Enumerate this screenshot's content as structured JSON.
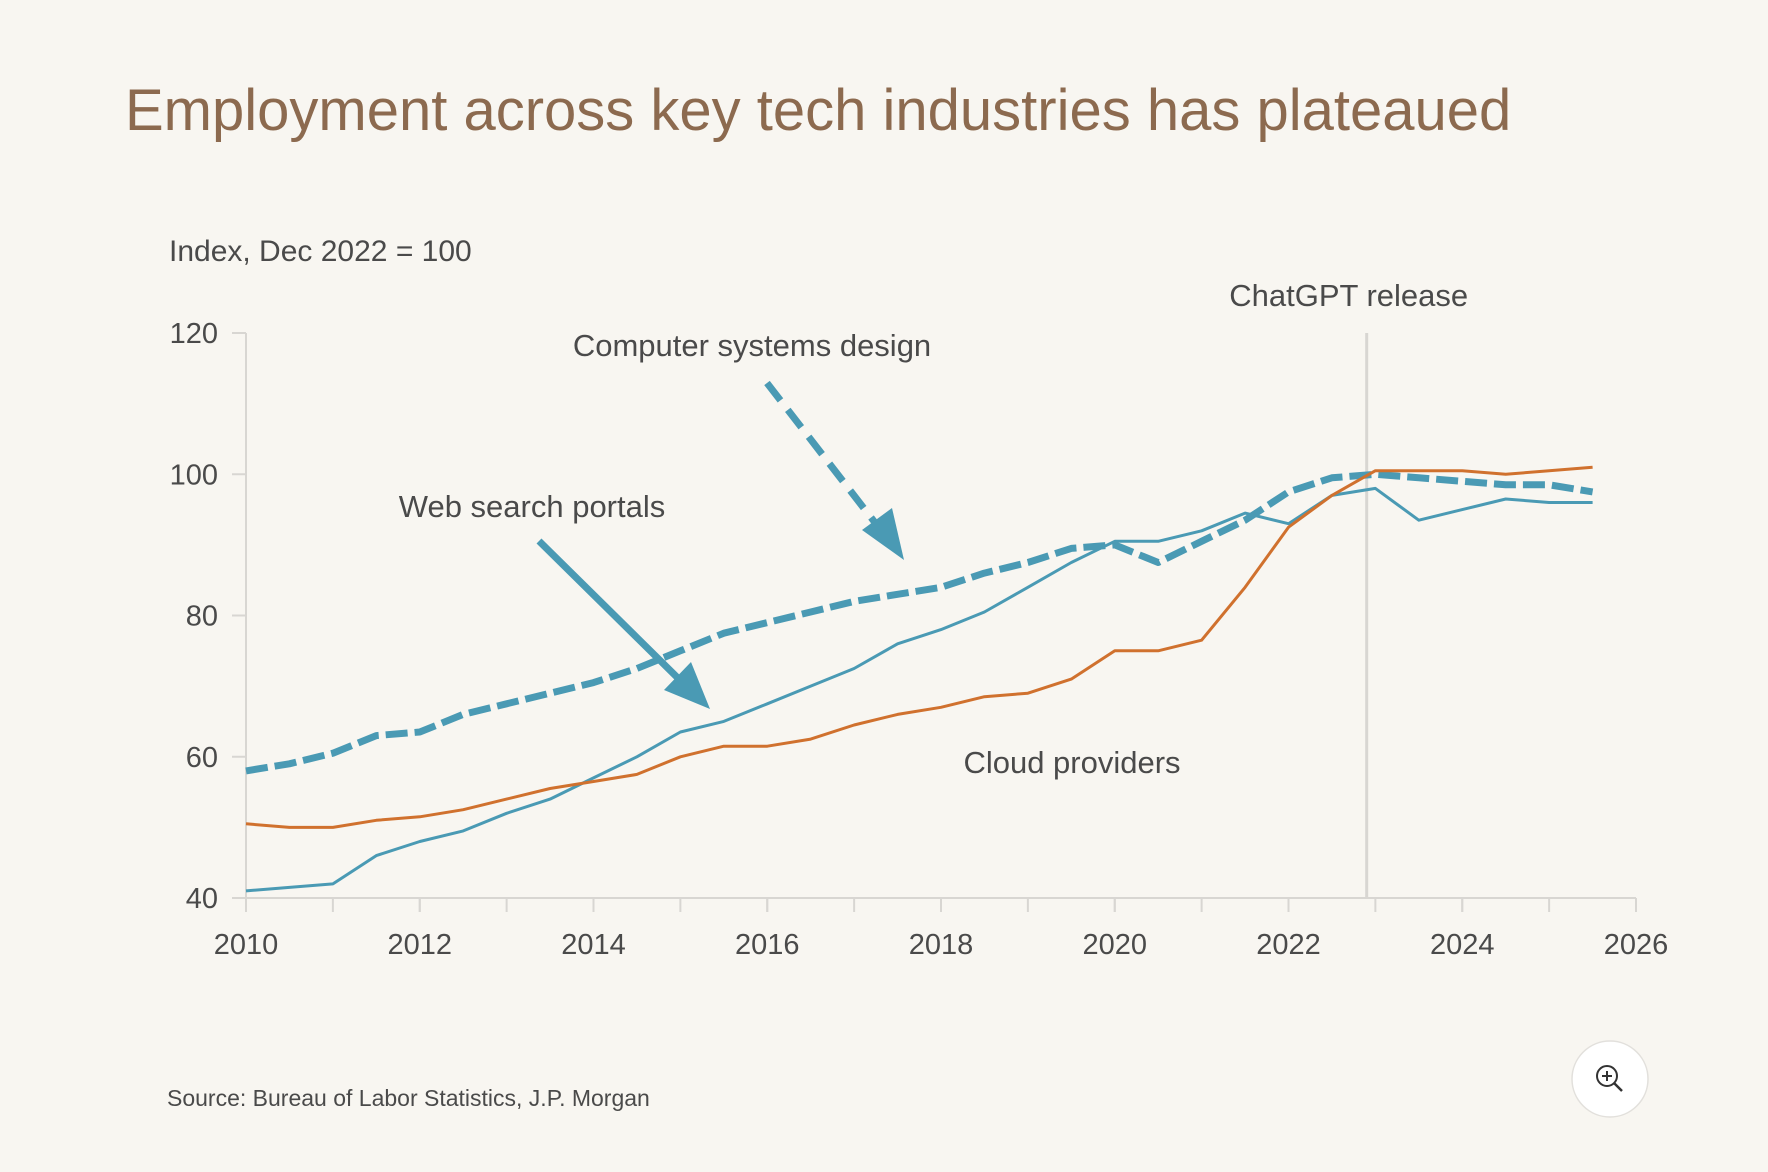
{
  "title": "Employment across key tech industries has plateaued",
  "source": "Source: Bureau of Labor Statistics, J.P. Morgan",
  "chart_data": {
    "type": "line",
    "subtitle": "Index, Dec 2022 = 100",
    "x": [
      2010,
      2010.5,
      2011,
      2011.5,
      2012,
      2012.5,
      2013,
      2013.5,
      2014,
      2014.5,
      2015,
      2015.5,
      2016,
      2016.5,
      2017,
      2017.5,
      2018,
      2018.5,
      2019,
      2019.5,
      2020,
      2020.5,
      2021,
      2021.5,
      2022,
      2022.5,
      2023,
      2023.5,
      2024,
      2024.5,
      2025,
      2025.5
    ],
    "xlim": [
      2010,
      2026
    ],
    "xticks": [
      2010,
      2012,
      2014,
      2016,
      2018,
      2020,
      2022,
      2024,
      2026
    ],
    "ylim": [
      40,
      120
    ],
    "yticks": [
      40,
      60,
      80,
      100,
      120
    ],
    "series": [
      {
        "name": "Web search portals",
        "color": "#4a9ab4",
        "dashed": false,
        "values": [
          41,
          41.5,
          42,
          46,
          48,
          49.5,
          52,
          54,
          57,
          60,
          63.5,
          65,
          67.5,
          70,
          72.5,
          76,
          78,
          80.5,
          84,
          87.5,
          90.5,
          90.5,
          92,
          94.5,
          93,
          97,
          98,
          93.5,
          95,
          96.5,
          96,
          96
        ]
      },
      {
        "name": "Computer systems design",
        "color": "#4a9ab4",
        "dashed": true,
        "values": [
          58,
          59,
          60.5,
          63,
          63.5,
          66,
          67.5,
          69,
          70.5,
          72.5,
          75,
          77.5,
          79,
          80.5,
          82,
          83,
          84,
          86,
          87.5,
          89.5,
          90,
          87.5,
          90.5,
          93.5,
          97.5,
          99.5,
          100,
          99.5,
          99,
          98.5,
          98.5,
          97.5
        ]
      },
      {
        "name": "Cloud providers",
        "color": "#d0712e",
        "dashed": false,
        "values": [
          50.5,
          50,
          50,
          51,
          51.5,
          52.5,
          54,
          55.5,
          56.5,
          57.5,
          60,
          61.5,
          61.5,
          62.5,
          64.5,
          66,
          67,
          68.5,
          69,
          71,
          75,
          75,
          76.5,
          84,
          92.5,
          97,
          100.5,
          100.5,
          100.5,
          100,
          100.5,
          101
        ]
      }
    ],
    "annotations": [
      {
        "text": "ChatGPT release",
        "x": 2022.9
      }
    ]
  }
}
